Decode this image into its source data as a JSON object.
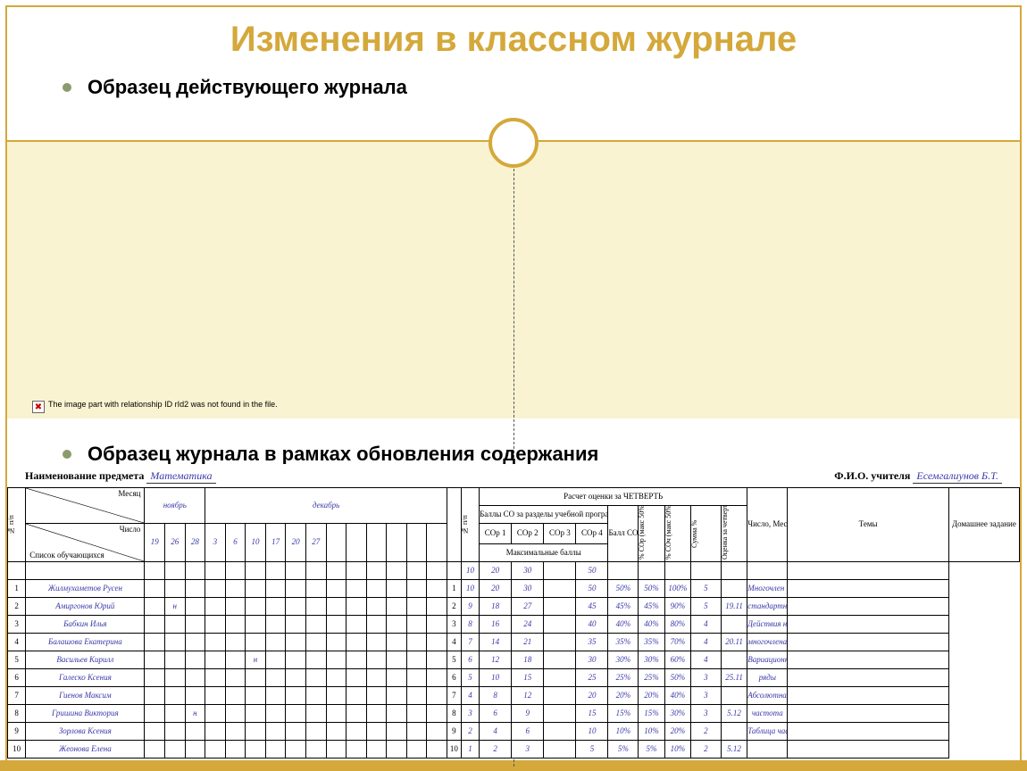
{
  "title": "Изменения в классном журнале",
  "bullet1": "Образец действующего журнала",
  "bullet2": "Образец журнала в рамках обновления содержания",
  "missing_image_text": "The image part with relationship ID rId2 was not found in the file.",
  "missing_image_icon": "✖",
  "colors": {
    "accent": "#d4a83a",
    "panel": "#faf3d1",
    "bullet": "#8a9b6e",
    "handwriting": "#3838a8"
  },
  "journal": {
    "subject_label": "Наименование предмета",
    "subject_value": "Математика",
    "teacher_label": "Ф.И.О. учителя",
    "teacher_value": "Есемгалиунов Б.Т.",
    "calc_header": "Расчет оценки за ЧЕТВЕРТЬ",
    "left": {
      "npp": "№ п/п",
      "month_label": "Месяц",
      "number_label": "Число",
      "list_label": "Список обучающихся",
      "months": [
        "ноябрь",
        "декабрь"
      ],
      "dates": [
        "19",
        "26",
        "28",
        "3",
        "6",
        "10",
        "17",
        "20",
        "27"
      ]
    },
    "right": {
      "npp": "№ п/п",
      "scores_label": "Баллы СО за разделы учебной программы в четверти",
      "cor_labels": [
        "СОр 1",
        "СОр 2",
        "СОр 3",
        "СОр 4"
      ],
      "max_label": "Максимальные баллы",
      "ball_label": "Балл СО за четв.",
      "pct_sor": "% СОр (макс 50%)",
      "pct_soch": "% СОч (макс 50%)",
      "sum_pct": "Сумма %",
      "grade_q": "Оценка за четверть",
      "date_label": "Число, Месяц",
      "topics_label": "Темы",
      "hw_label": "Домашнее задание",
      "max_row": [
        "10",
        "20",
        "30",
        "",
        "50"
      ]
    },
    "students": [
      {
        "n": "1",
        "name": "Жилмухаметов Русен",
        "marks": [
          "",
          "",
          "",
          "",
          "",
          "",
          "",
          "",
          ""
        ]
      },
      {
        "n": "2",
        "name": "Амиргонов Юрий",
        "marks": [
          "",
          "н",
          "",
          "",
          "",
          "",
          "",
          "",
          ""
        ]
      },
      {
        "n": "3",
        "name": "Бабкин Илья",
        "marks": [
          "",
          "",
          "",
          "",
          "",
          "",
          "",
          "",
          ""
        ]
      },
      {
        "n": "4",
        "name": "Балашова Екатерина",
        "marks": [
          "",
          "",
          "",
          "",
          "",
          "",
          "",
          "",
          ""
        ]
      },
      {
        "n": "5",
        "name": "Васильев Кирилл",
        "marks": [
          "",
          "",
          "",
          "",
          "",
          "н",
          "",
          "",
          ""
        ]
      },
      {
        "n": "6",
        "name": "Галеско Ксения",
        "marks": [
          "",
          "",
          "",
          "",
          "",
          "",
          "",
          "",
          ""
        ]
      },
      {
        "n": "7",
        "name": "Гиенов Максим",
        "marks": [
          "",
          "",
          "",
          "",
          "",
          "",
          "",
          "",
          ""
        ]
      },
      {
        "n": "8",
        "name": "Гришина Виктория",
        "marks": [
          "",
          "",
          "н",
          "",
          "",
          "",
          "",
          "",
          ""
        ]
      },
      {
        "n": "9",
        "name": "Зорлова Ксения",
        "marks": [
          "",
          "",
          "",
          "",
          "",
          "",
          "",
          "",
          ""
        ]
      },
      {
        "n": "10",
        "name": "Жеонова Елена",
        "marks": [
          "",
          "",
          "",
          "",
          "",
          "",
          "",
          "",
          ""
        ]
      }
    ],
    "scores": [
      {
        "n": "1",
        "c": [
          "10",
          "20",
          "30",
          ""
        ],
        "t": "50",
        "p1": "50%",
        "p2": "50%",
        "s": "100%",
        "g": "5",
        "d": "",
        "topic": "Многочлен и его"
      },
      {
        "n": "2",
        "c": [
          "9",
          "18",
          "27",
          ""
        ],
        "t": "45",
        "p1": "45%",
        "p2": "45%",
        "s": "90%",
        "g": "5",
        "d": "19.11",
        "topic": "стандартный вид"
      },
      {
        "n": "3",
        "c": [
          "8",
          "16",
          "24",
          ""
        ],
        "t": "40",
        "p1": "40%",
        "p2": "40%",
        "s": "80%",
        "g": "4",
        "d": "",
        "topic": "Действия над"
      },
      {
        "n": "4",
        "c": [
          "7",
          "14",
          "21",
          ""
        ],
        "t": "35",
        "p1": "35%",
        "p2": "35%",
        "s": "70%",
        "g": "4",
        "d": "20.11",
        "topic": "многочленами"
      },
      {
        "n": "5",
        "c": [
          "6",
          "12",
          "18",
          ""
        ],
        "t": "30",
        "p1": "30%",
        "p2": "30%",
        "s": "60%",
        "g": "4",
        "d": "",
        "topic": "Вариационные"
      },
      {
        "n": "6",
        "c": [
          "5",
          "10",
          "15",
          ""
        ],
        "t": "25",
        "p1": "25%",
        "p2": "25%",
        "s": "50%",
        "g": "3",
        "d": "25.11",
        "topic": "ряды"
      },
      {
        "n": "7",
        "c": [
          "4",
          "8",
          "12",
          ""
        ],
        "t": "20",
        "p1": "20%",
        "p2": "20%",
        "s": "40%",
        "g": "3",
        "d": "",
        "topic": "Абсолютная"
      },
      {
        "n": "8",
        "c": [
          "3",
          "6",
          "9",
          ""
        ],
        "t": "15",
        "p1": "15%",
        "p2": "15%",
        "s": "30%",
        "g": "3",
        "d": "5.12",
        "topic": "частота"
      },
      {
        "n": "9",
        "c": [
          "2",
          "4",
          "6",
          ""
        ],
        "t": "10",
        "p1": "10%",
        "p2": "10%",
        "s": "20%",
        "g": "2",
        "d": "",
        "topic": "Таблица частот"
      },
      {
        "n": "10",
        "c": [
          "1",
          "2",
          "3",
          ""
        ],
        "t": "5",
        "p1": "5%",
        "p2": "5%",
        "s": "10%",
        "g": "2",
        "d": "5.12",
        "topic": ""
      }
    ]
  }
}
